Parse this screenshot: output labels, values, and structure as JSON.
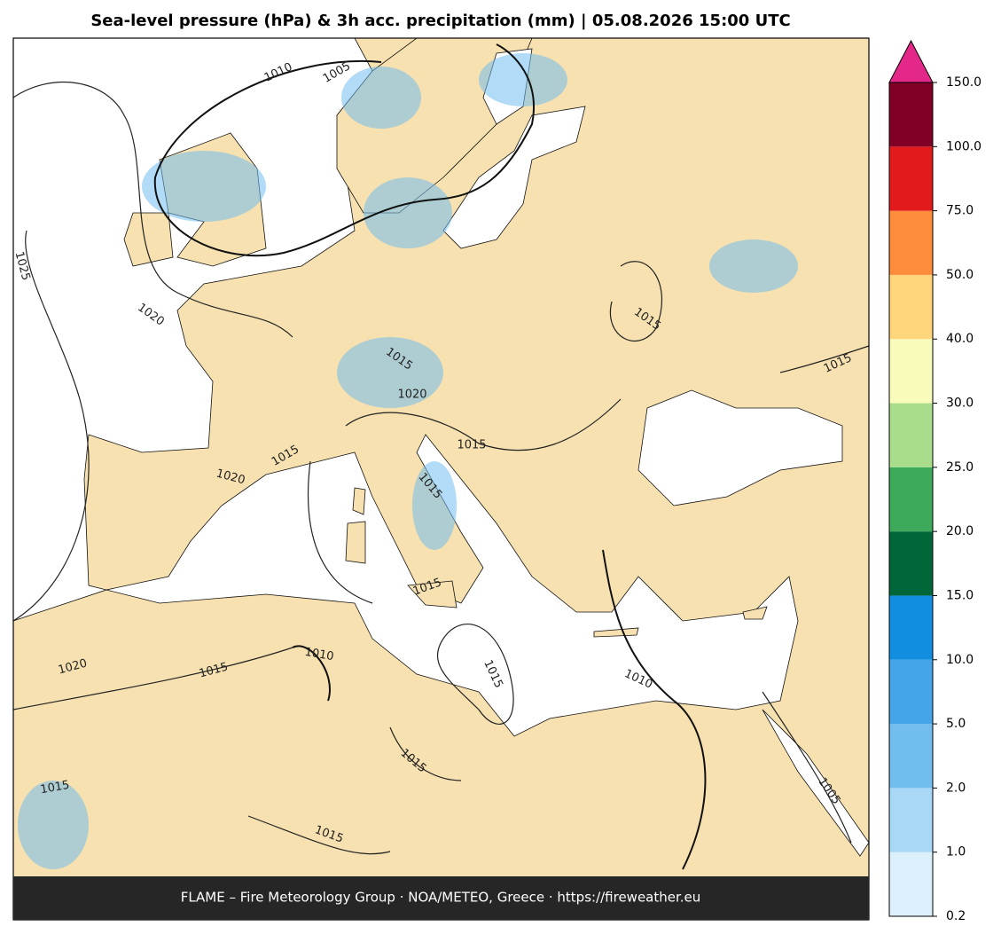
{
  "header": {
    "title": "Sea-level pressure (hPa) & 3h acc. precipitation (mm)  |  05.08.2026 15:00 UTC"
  },
  "map": {
    "contour_labels": [
      1010,
      1005,
      1025,
      1020,
      1015,
      1015,
      1020,
      1015,
      1015,
      1020,
      1015,
      1015,
      1015,
      1015,
      1020,
      1015,
      1010,
      1010,
      1015,
      1015,
      1005,
      1015
    ]
  },
  "colorbar": {
    "ticks": [
      {
        "value": 0.2,
        "label": "0.2"
      },
      {
        "value": 1,
        "label": "1.0"
      },
      {
        "value": 2,
        "label": "2.0"
      },
      {
        "value": 5,
        "label": "5.0"
      },
      {
        "value": 10,
        "label": "10.0"
      },
      {
        "value": 15,
        "label": "15.0"
      },
      {
        "value": 20,
        "label": "20.0"
      },
      {
        "value": 25,
        "label": "25.0"
      },
      {
        "value": 30,
        "label": "30.0"
      },
      {
        "value": 40,
        "label": "40.0"
      },
      {
        "value": 50,
        "label": "50.0"
      },
      {
        "value": 75,
        "label": "75.0"
      },
      {
        "value": 100,
        "label": "100.0"
      },
      {
        "value": 150,
        "label": "150.0"
      }
    ],
    "colors": [
      "#dcf0fb",
      "#a9d8f6",
      "#71bdee",
      "#45a5e8",
      "#118ee0",
      "#016738",
      "#3da95a",
      "#a9dd8c",
      "#f8fbbc",
      "#fed57b",
      "#fd8c3c",
      "#e31a1c",
      "#800026"
    ],
    "extend_color": "#e4288a"
  },
  "footer": {
    "text": "FLAME – Fire Meteorology Group · NOA/METEO, Greece · https://fireweather.eu"
  }
}
